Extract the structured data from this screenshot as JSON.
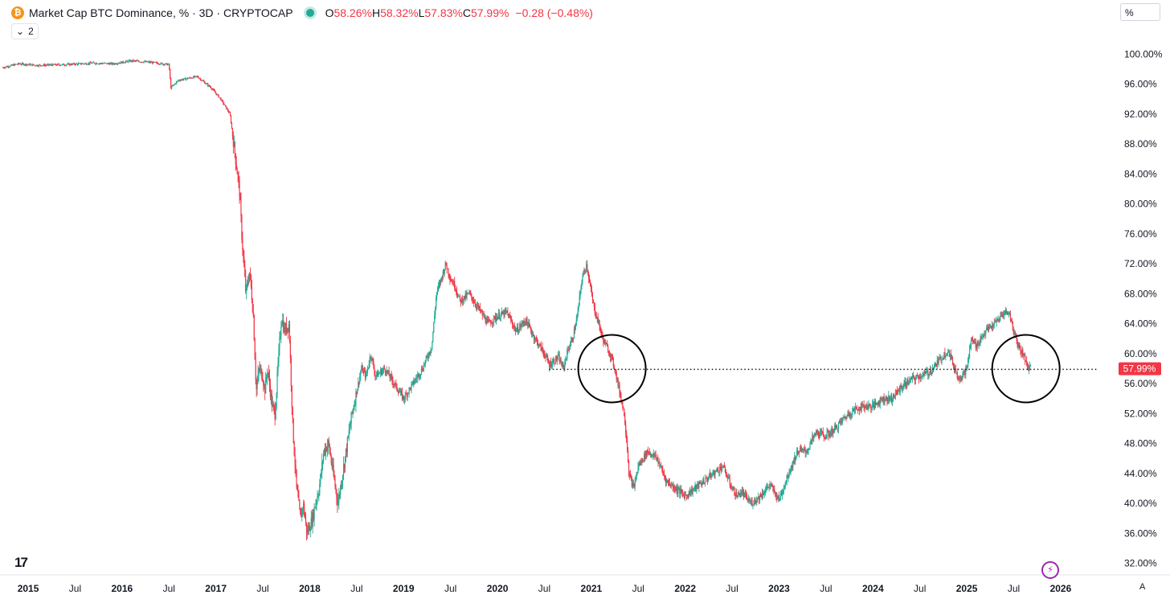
{
  "header": {
    "title": "Market Cap BTC Dominance, % · 3D · CRYPTOCAP",
    "logo_glyph": "₿",
    "ohlc": [
      {
        "key": "O",
        "value": "58.26%"
      },
      {
        "key": "H",
        "value": "58.32%"
      },
      {
        "key": "L",
        "value": "57.83%"
      },
      {
        "key": "C",
        "value": "57.99%"
      }
    ],
    "change": "−0.28 (−0.48%)",
    "collapse_count": "2",
    "collapse_icon": "chevron-down-icon"
  },
  "controls": {
    "unit_label": "%",
    "auto_label": "A"
  },
  "colors": {
    "up": "#22ab94",
    "down": "#f23645",
    "accent_btc": "#f7931a"
  },
  "chart_data": {
    "type": "line",
    "style": "candlestick",
    "x_ticks": [
      "2015",
      "Jul",
      "2016",
      "Jul",
      "2017",
      "Jul",
      "2018",
      "Jul",
      "2019",
      "Jul",
      "2020",
      "Jul",
      "2021",
      "Jul",
      "2022",
      "Jul",
      "2023",
      "Jul",
      "2024",
      "Jul",
      "2025",
      "Jul",
      "2026"
    ],
    "y_ticks": [
      "32.00%",
      "36.00%",
      "40.00%",
      "44.00%",
      "48.00%",
      "52.00%",
      "56.00%",
      "60.00%",
      "64.00%",
      "68.00%",
      "72.00%",
      "76.00%",
      "80.00%",
      "84.00%",
      "88.00%",
      "92.00%",
      "96.00%",
      "100.00%"
    ],
    "ylim": [
      31,
      104
    ],
    "xlim": [
      2014.7,
      2026.6
    ],
    "last_price_label": "57.99%",
    "last_price": 57.99,
    "reference_level": 57.9,
    "reference_line_range": [
      2020.55,
      2026.4
    ],
    "highlight_circles": [
      {
        "x": 2021.22,
        "y": 58.0
      },
      {
        "x": 2025.63,
        "y": 58.0
      }
    ],
    "series": [
      {
        "x": [
          2014.73,
          2014.9,
          2015.1,
          2015.4,
          2015.7,
          2015.9,
          2016.1,
          2016.3,
          2016.5,
          2016.52,
          2016.6,
          2016.8,
          2016.95,
          2017.05,
          2017.15,
          2017.2,
          2017.25,
          2017.28,
          2017.32,
          2017.36,
          2017.4,
          2017.43,
          2017.46,
          2017.5,
          2017.52,
          2017.55,
          2017.6,
          2017.63,
          2017.67,
          2017.7,
          2017.73,
          2017.78,
          2017.82,
          2017.86,
          2017.9,
          2017.93,
          2017.97,
          2018.0,
          2018.03,
          2018.06,
          2018.1,
          2018.15,
          2018.2,
          2018.25,
          2018.3,
          2018.35,
          2018.4,
          2018.45,
          2018.5,
          2018.55,
          2018.6,
          2018.65,
          2018.7,
          2018.8,
          2018.9,
          2019.0,
          2019.1,
          2019.2,
          2019.3,
          2019.35,
          2019.4,
          2019.45,
          2019.5,
          2019.55,
          2019.6,
          2019.7,
          2019.8,
          2019.9,
          2020.0,
          2020.1,
          2020.2,
          2020.3,
          2020.4,
          2020.5,
          2020.55,
          2020.6,
          2020.65,
          2020.7,
          2020.75,
          2020.8,
          2020.85,
          2020.9,
          2020.95,
          2021.0,
          2021.03,
          2021.08,
          2021.12,
          2021.2,
          2021.25,
          2021.3,
          2021.35,
          2021.38,
          2021.4,
          2021.45,
          2021.5,
          2021.6,
          2021.7,
          2021.8,
          2021.9,
          2022.0,
          2022.1,
          2022.2,
          2022.3,
          2022.4,
          2022.5,
          2022.55,
          2022.6,
          2022.7,
          2022.8,
          2022.9,
          2023.0,
          2023.1,
          2023.2,
          2023.3,
          2023.35,
          2023.4,
          2023.5,
          2023.6,
          2023.7,
          2023.8,
          2023.9,
          2024.0,
          2024.1,
          2024.2,
          2024.3,
          2024.4,
          2024.5,
          2024.6,
          2024.7,
          2024.8,
          2024.9,
          2024.95,
          2025.0,
          2025.05,
          2025.1,
          2025.2,
          2025.3,
          2025.4,
          2025.45,
          2025.5,
          2025.55,
          2025.6,
          2025.65,
          2025.68
        ],
        "y": [
          98.2,
          98.7,
          98.5,
          98.6,
          98.8,
          98.7,
          99.1,
          98.9,
          98.6,
          95.5,
          96.5,
          97.0,
          95.5,
          94.0,
          92.0,
          87.0,
          82.0,
          75.0,
          68.0,
          71.0,
          65.0,
          55.0,
          58.0,
          57.0,
          55.0,
          58.0,
          53.0,
          52.0,
          60.0,
          65.0,
          63.0,
          64.0,
          50.0,
          42.0,
          38.0,
          40.0,
          36.0,
          37.0,
          38.0,
          40.0,
          42.0,
          47.0,
          48.0,
          44.0,
          40.0,
          44.0,
          48.0,
          52.0,
          55.0,
          58.0,
          57.0,
          60.0,
          57.0,
          58.0,
          56.0,
          54.0,
          56.0,
          58.0,
          61.0,
          68.0,
          70.0,
          72.0,
          70.0,
          69.0,
          67.0,
          68.0,
          66.0,
          64.0,
          65.0,
          65.5,
          63.0,
          64.5,
          62.0,
          60.0,
          58.5,
          59.0,
          59.5,
          58.0,
          60.5,
          62.0,
          65.0,
          70.0,
          72.0,
          68.0,
          66.0,
          64.0,
          62.0,
          60.0,
          58.0,
          55.0,
          52.0,
          48.0,
          44.0,
          42.0,
          45.0,
          47.0,
          46.0,
          43.0,
          42.0,
          41.0,
          42.0,
          43.0,
          44.0,
          45.0,
          42.0,
          41.0,
          41.5,
          40.0,
          41.0,
          42.5,
          40.5,
          44.0,
          47.0,
          47.0,
          48.5,
          49.5,
          49.0,
          50.0,
          51.5,
          52.5,
          53.0,
          53.0,
          54.0,
          54.0,
          55.5,
          56.5,
          57.0,
          57.5,
          59.0,
          60.5,
          57.0,
          57.0,
          58.0,
          62.0,
          61.0,
          63.0,
          64.0,
          65.5,
          65.5,
          63.0,
          61.0,
          60.0,
          58.26,
          57.99
        ]
      }
    ]
  }
}
